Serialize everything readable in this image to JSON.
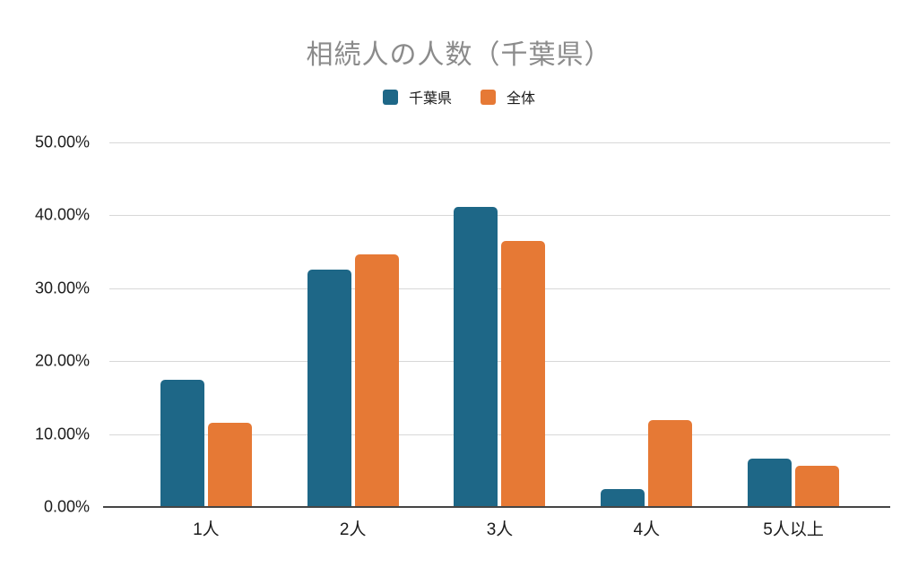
{
  "title": "相続人の人数（千葉県）",
  "colors": {
    "series_chiba": "#1e6787",
    "series_overall": "#e67935",
    "title_text": "#8b8b8b",
    "gridline": "#d8d8d8",
    "axis_line": "#454545",
    "label_text": "#1a1a1a"
  },
  "legend": {
    "items": [
      {
        "label": "千葉県",
        "color": "#1e6787"
      },
      {
        "label": "全体",
        "color": "#e67935"
      }
    ]
  },
  "y_axis": {
    "tick_labels": [
      "50.00%",
      "40.00%",
      "30.00%",
      "20.00%",
      "10.00%",
      "0.00%"
    ]
  },
  "chart_data": {
    "type": "bar",
    "title": "相続人の人数（千葉県）",
    "categories": [
      "1人",
      "2人",
      "3人",
      "4人",
      "5人以上"
    ],
    "series": [
      {
        "name": "千葉県",
        "color": "#1e6787",
        "values": [
          17.4,
          32.5,
          41.1,
          2.5,
          6.6
        ]
      },
      {
        "name": "全体",
        "color": "#e67935",
        "values": [
          11.6,
          34.6,
          36.5,
          11.9,
          5.7
        ]
      }
    ],
    "xlabel": "",
    "ylabel": "",
    "ylim": [
      0,
      50
    ],
    "y_tick_step": 10,
    "y_tick_format": "percent_2dp",
    "grid": true,
    "legend_position": "top"
  }
}
